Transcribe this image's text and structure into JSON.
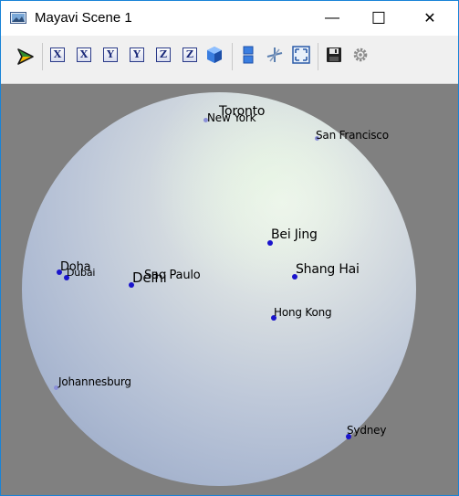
{
  "window": {
    "title": "Mayavi Scene 1"
  },
  "window_controls": {
    "minimize": "—",
    "maximize": "☐",
    "close": "✕"
  },
  "toolbar": {
    "view_buttons": [
      {
        "name": "view-x-pos-button",
        "label": "X"
      },
      {
        "name": "view-x-neg-button",
        "label": "X"
      },
      {
        "name": "view-y-pos-button",
        "label": "Y"
      },
      {
        "name": "view-y-neg-button",
        "label": "Y"
      },
      {
        "name": "view-z-pos-button",
        "label": "Z"
      },
      {
        "name": "view-z-neg-button",
        "label": "Z"
      }
    ]
  },
  "scene": {
    "background_color": "#808080",
    "point_color": "#1a14cc",
    "cities": [
      {
        "name": "toronto",
        "label": "Toronto"
      },
      {
        "name": "new-york",
        "label": "New York"
      },
      {
        "name": "san-francisco",
        "label": "San Francisco"
      },
      {
        "name": "bei-jing",
        "label": "Bei Jing"
      },
      {
        "name": "doha",
        "label": "Doha"
      },
      {
        "name": "dubai",
        "label": "Dubai"
      },
      {
        "name": "delhi",
        "label": "Delhi"
      },
      {
        "name": "sao-paulo",
        "label": "Sao Paulo"
      },
      {
        "name": "shang-hai",
        "label": "Shang Hai"
      },
      {
        "name": "hong-kong",
        "label": "Hong Kong"
      },
      {
        "name": "johannesburg",
        "label": "Johannesburg"
      },
      {
        "name": "sydney",
        "label": "Sydney"
      }
    ]
  }
}
